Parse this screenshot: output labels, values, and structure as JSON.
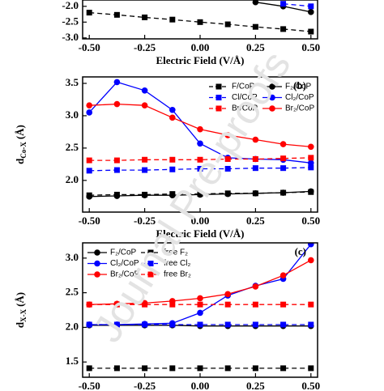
{
  "watermark": "Journal Pre-proofs",
  "chart_data": [
    {
      "type": "line",
      "xlabel": "Electric Field (V/Å)",
      "x": [
        -0.5,
        -0.375,
        -0.25,
        -0.125,
        0,
        0.125,
        0.25,
        0.375,
        0.5
      ],
      "xlim": [
        -0.53,
        0.53
      ],
      "xticks": [
        {
          "value": -0.5,
          "label": "-0.50"
        },
        {
          "value": -0.25,
          "label": "-0.25"
        },
        {
          "value": 0,
          "label": "0.00"
        },
        {
          "value": 0.25,
          "label": "0.25"
        },
        {
          "value": 0.5,
          "label": "0.50"
        }
      ],
      "ylim": [
        -3.03,
        -1.8
      ],
      "yticks": [
        {
          "value": -2,
          "label": "-2.0"
        },
        -2.5,
        {
          "value": -3,
          "label": "-3.0"
        }
      ],
      "series": [
        {
          "color": "#000000",
          "marker": "square",
          "linestyle": "dashed",
          "values": [
            -2.2,
            -2.27,
            -2.35,
            -2.42,
            -2.5,
            -2.57,
            -2.65,
            -2.72,
            -2.8
          ]
        },
        {
          "color": "#000000",
          "marker": "circle",
          "linestyle": "solid",
          "values": [
            null,
            null,
            null,
            null,
            null,
            null,
            -1.87,
            -2.0,
            -2.18
          ]
        },
        {
          "color": "#0000ff",
          "marker": "square",
          "linestyle": "dashed",
          "values": [
            null,
            null,
            null,
            null,
            null,
            null,
            null,
            -1.92,
            -2.0
          ]
        }
      ]
    },
    {
      "type": "line",
      "panel_label": "(b)",
      "xlabel": "Electric Field (V/Å)",
      "ylabel": "d",
      "ylabel_subscript": "Co-X",
      "ylabel_unit": "(Å)",
      "legend": "upper right",
      "x": [
        -0.5,
        -0.375,
        -0.25,
        -0.125,
        0,
        0.125,
        0.25,
        0.375,
        0.5
      ],
      "xlim": [
        -0.53,
        0.53
      ],
      "xticks": [
        {
          "value": -0.5,
          "label": "-0.50"
        },
        {
          "value": -0.25,
          "label": "-0.25"
        },
        {
          "value": 0,
          "label": "0.00"
        },
        {
          "value": 0.25,
          "label": "0.25"
        },
        {
          "value": 0.5,
          "label": "0.50"
        }
      ],
      "ylim": [
        1.51,
        3.6
      ],
      "yticks": [
        3.5,
        {
          "value": 3,
          "label": "3.0"
        },
        2.5,
        {
          "value": 2,
          "label": "2.0"
        }
      ],
      "series": [
        {
          "name": "F/CoP",
          "color": "#000000",
          "marker": "square",
          "linestyle": "dashed",
          "values": [
            1.77,
            1.78,
            1.78,
            1.79,
            1.79,
            1.8,
            1.8,
            1.81,
            1.82
          ]
        },
        {
          "name": "F₂/CoP",
          "color": "#000000",
          "marker": "circle",
          "linestyle": "solid",
          "values": [
            1.75,
            1.76,
            1.77,
            1.77,
            1.78,
            1.79,
            1.8,
            1.81,
            1.83
          ]
        },
        {
          "name": "Cl/CoP",
          "color": "#0000ff",
          "marker": "square",
          "linestyle": "dashed",
          "values": [
            2.15,
            2.16,
            2.16,
            2.17,
            2.18,
            2.18,
            2.19,
            2.19,
            2.2
          ]
        },
        {
          "name": "Cl₂/CoP",
          "color": "#0000ff",
          "marker": "circle",
          "linestyle": "solid",
          "values": [
            3.05,
            3.52,
            3.39,
            3.09,
            2.57,
            2.35,
            2.33,
            2.32,
            2.27
          ]
        },
        {
          "name": "Br/CoP",
          "color": "#ff0000",
          "marker": "square",
          "linestyle": "dashed",
          "values": [
            2.31,
            2.31,
            2.32,
            2.32,
            2.32,
            2.33,
            2.33,
            2.34,
            2.35
          ]
        },
        {
          "name": "Br₂/CoP",
          "color": "#ff0000",
          "marker": "circle",
          "linestyle": "solid",
          "values": [
            3.16,
            3.18,
            3.16,
            2.97,
            2.79,
            2.7,
            2.63,
            2.56,
            2.52
          ]
        }
      ]
    },
    {
      "type": "line",
      "panel_label": "(c)",
      "ylabel": "d",
      "ylabel_subscript": "X-X",
      "ylabel_unit": "(Å)",
      "legend": "upper left",
      "x": [
        -0.5,
        -0.375,
        -0.25,
        -0.125,
        0,
        0.125,
        0.25,
        0.375,
        0.5
      ],
      "xlim": [
        -0.53,
        0.53
      ],
      "xticks": [
        {
          "value": -0.5,
          "label": "-0.50"
        },
        {
          "value": -0.25,
          "label": "-0.25"
        },
        {
          "value": 0,
          "label": "0.00"
        },
        {
          "value": 0.25,
          "label": "0.25"
        },
        {
          "value": 0.5,
          "label": "0.50"
        }
      ],
      "ylim": [
        1.28,
        3.22
      ],
      "yticks": [
        {
          "value": 3,
          "label": "3.0"
        },
        2.5,
        {
          "value": 2,
          "label": "2.0"
        },
        1.5
      ],
      "series": [
        {
          "name": "F₂/CoP",
          "color": "#000000",
          "marker": "circle",
          "linestyle": "solid",
          "values": [
            2.03,
            2.03,
            2.03,
            2.03,
            2.02,
            2.02,
            2.02,
            2.02,
            2.02
          ]
        },
        {
          "name": "free F₂",
          "color": "#000000",
          "marker": "square",
          "linestyle": "dashed",
          "values": [
            1.41,
            1.41,
            1.41,
            1.41,
            1.41,
            1.41,
            1.41,
            1.41,
            1.41
          ]
        },
        {
          "name": "Cl₂/CoP",
          "color": "#0000ff",
          "marker": "circle",
          "linestyle": "solid",
          "values": [
            2.04,
            2.04,
            2.05,
            2.06,
            2.21,
            2.46,
            2.6,
            2.7,
            3.2
          ]
        },
        {
          "name": "free Cl₂",
          "color": "#0000ff",
          "marker": "square",
          "linestyle": "dashed",
          "values": [
            2.04,
            2.04,
            2.04,
            2.04,
            2.04,
            2.04,
            2.04,
            2.04,
            2.04
          ]
        },
        {
          "name": "Br₂/CoP",
          "color": "#ff0000",
          "marker": "circle",
          "linestyle": "solid",
          "values": [
            2.33,
            2.34,
            2.35,
            2.38,
            2.42,
            2.48,
            2.59,
            2.75,
            2.97
          ]
        },
        {
          "name": "free Br₂",
          "color": "#ff0000",
          "marker": "square",
          "linestyle": "dashed",
          "values": [
            2.33,
            2.33,
            2.33,
            2.33,
            2.33,
            2.33,
            2.33,
            2.33,
            2.33
          ]
        }
      ]
    }
  ]
}
